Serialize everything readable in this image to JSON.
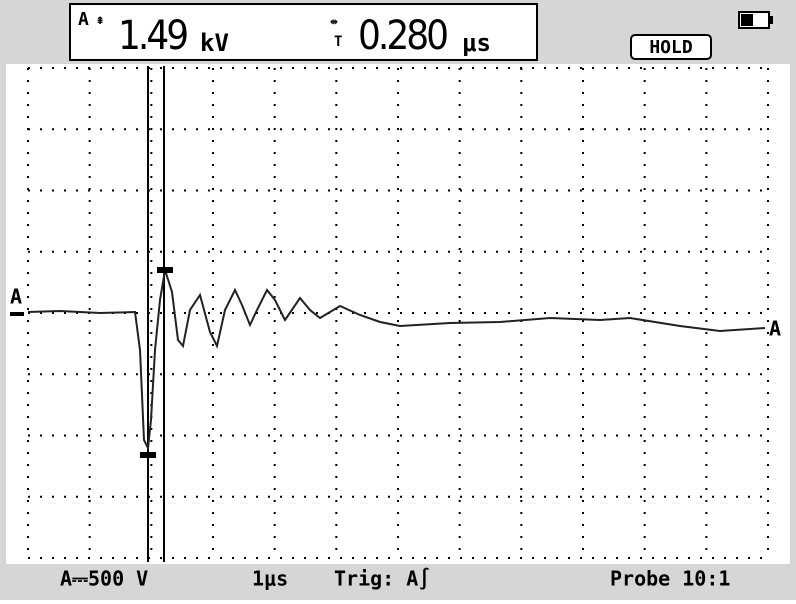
{
  "readout": {
    "channel": "A",
    "voltage": "1.49",
    "voltage_unit": "kV",
    "time": "0.280",
    "time_unit": "μs"
  },
  "status": "HOLD",
  "trace_labels": {
    "left": "A",
    "right": "A"
  },
  "footer": {
    "channel_scale": "A⎓500 V",
    "timebase": "1μs",
    "trigger": "Trig: A∫",
    "probe": "Probe 10:1"
  }
}
